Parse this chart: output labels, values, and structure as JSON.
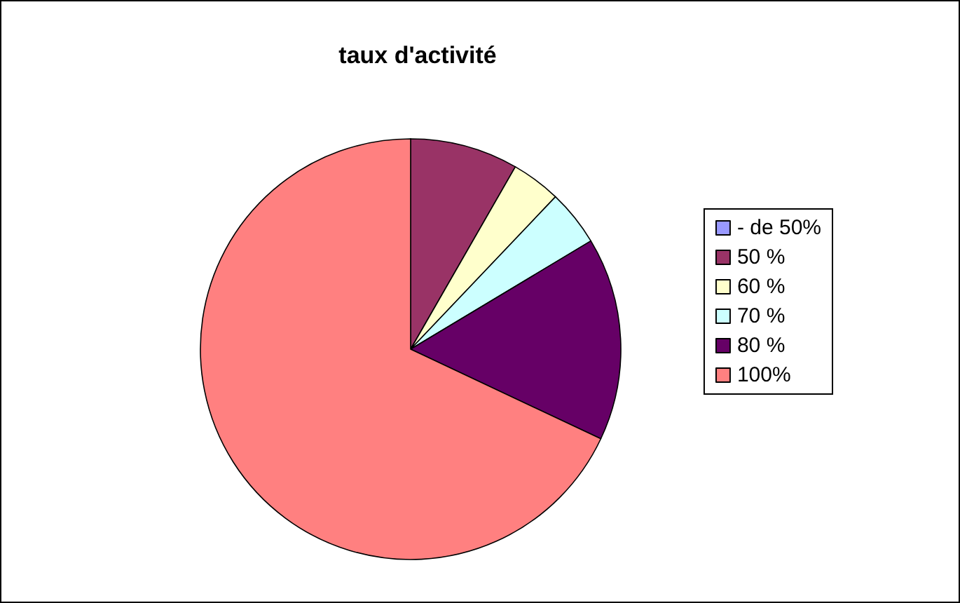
{
  "chart_data": {
    "type": "pie",
    "title": "taux d'activité",
    "categories": [
      "- de 50%",
      "50 %",
      "60 %",
      "70 %",
      "80 %",
      "100%"
    ],
    "values": [
      0,
      8.3,
      3.8,
      4.3,
      15.6,
      68.0
    ],
    "colors": [
      "#9999ff",
      "#993366",
      "#ffffcc",
      "#ccffff",
      "#660066",
      "#ff8080"
    ],
    "legend": "right"
  }
}
